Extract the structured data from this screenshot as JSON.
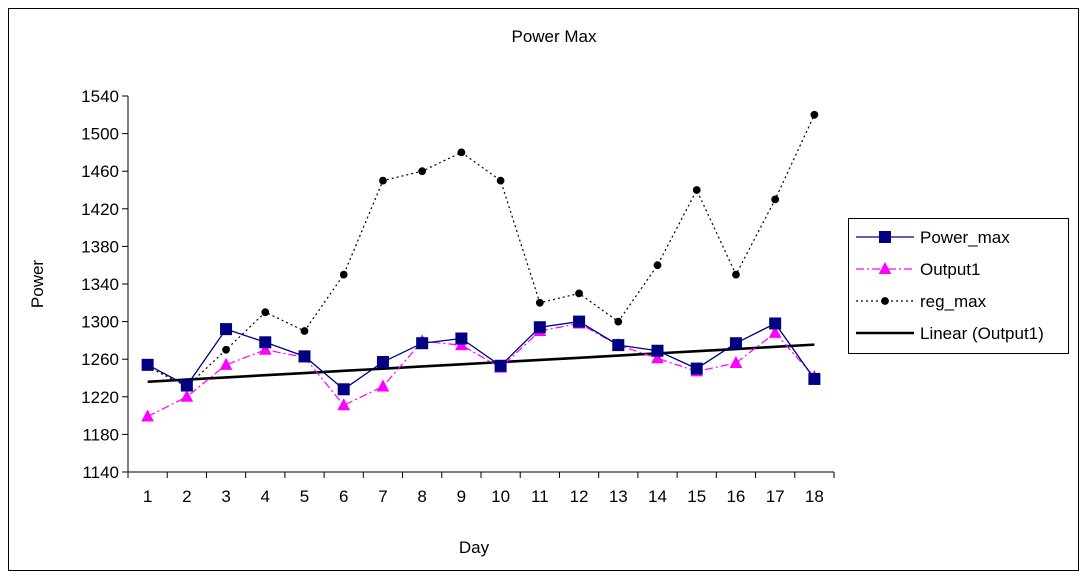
{
  "chart_data": {
    "type": "line",
    "title": "Power Max",
    "xlabel": "Day",
    "ylabel": "Power",
    "categories": [
      "1",
      "2",
      "3",
      "4",
      "5",
      "6",
      "7",
      "8",
      "9",
      "10",
      "11",
      "12",
      "13",
      "14",
      "15",
      "16",
      "17",
      "18"
    ],
    "ylim": [
      1140,
      1540
    ],
    "yticks": [
      1140,
      1180,
      1220,
      1260,
      1300,
      1340,
      1380,
      1420,
      1460,
      1500,
      1540
    ],
    "grid": false,
    "legend_position": "right",
    "series": [
      {
        "name": "Power_max",
        "values": [
          1254,
          1232,
          1292,
          1278,
          1263,
          1228,
          1257,
          1277,
          1282,
          1253,
          1294,
          1300,
          1275,
          1269,
          1250,
          1277,
          1298,
          1239
        ],
        "color": "#000080",
        "marker": "square",
        "line_style": "solid"
      },
      {
        "name": "Output1",
        "values": [
          1199,
          1220,
          1254,
          1270,
          1262,
          1211,
          1231,
          1279,
          1275,
          1251,
          1290,
          1298,
          1275,
          1261,
          1247,
          1256,
          1288,
          1241
        ],
        "color": "#ff00ff",
        "marker": "triangle",
        "line_style": "dash-dot"
      },
      {
        "name": "reg_max",
        "values": [
          1252,
          1231,
          1270,
          1310,
          1290,
          1350,
          1450,
          1460,
          1480,
          1450,
          1320,
          1330,
          1300,
          1360,
          1440,
          1350,
          1430,
          1520
        ],
        "color": "#000000",
        "marker": "circle",
        "line_style": "dotted"
      },
      {
        "name": "Linear (Output1)",
        "values": [
          1236,
          1238.3,
          1240.6,
          1243,
          1245.3,
          1247.6,
          1249.9,
          1252.3,
          1254.6,
          1256.9,
          1259.2,
          1261.5,
          1263.9,
          1266.2,
          1268.5,
          1270.8,
          1273.2,
          1275.5
        ],
        "color": "#000000",
        "marker": "none",
        "line_style": "solid-thick"
      }
    ]
  }
}
